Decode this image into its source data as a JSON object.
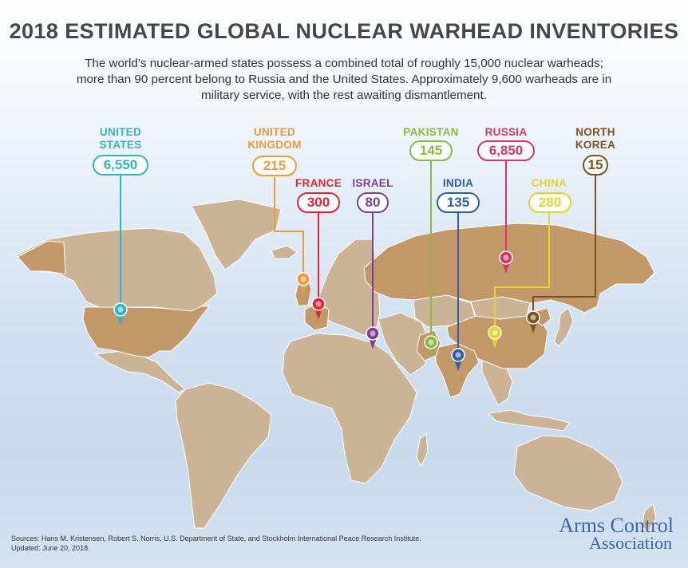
{
  "title": "2018 ESTIMATED GLOBAL NUCLEAR WARHEAD INVENTORIES",
  "subtitle": "The world’s nuclear-armed states possess a combined total of roughly 15,000 nuclear warheads; more than 90 percent belong to Russia and the United States. Approximately 9,600 warheads are in military service, with the rest awaiting dismantlement.",
  "countries": [
    {
      "id": "us",
      "name_lines": [
        "UNITED",
        "STATES"
      ],
      "value": "6,550",
      "color": "#2fb3c9"
    },
    {
      "id": "uk",
      "name_lines": [
        "UNITED",
        "KINGDOM"
      ],
      "value": "215",
      "color": "#ec9a3a"
    },
    {
      "id": "france",
      "name_lines": [
        "FRANCE"
      ],
      "value": "300",
      "color": "#e32436"
    },
    {
      "id": "israel",
      "name_lines": [
        "ISRAEL"
      ],
      "value": "80",
      "color": "#7b3f98"
    },
    {
      "id": "pakistan",
      "name_lines": [
        "PAKISTAN"
      ],
      "value": "145",
      "color": "#8bb93f"
    },
    {
      "id": "india",
      "name_lines": [
        "INDIA"
      ],
      "value": "135",
      "color": "#2e5fa5"
    },
    {
      "id": "russia",
      "name_lines": [
        "RUSSIA"
      ],
      "value": "6,850",
      "color": "#d63663"
    },
    {
      "id": "china",
      "name_lines": [
        "CHINA"
      ],
      "value": "280",
      "color": "#e4d22e"
    },
    {
      "id": "north_korea",
      "name_lines": [
        "NORTH",
        "KOREA"
      ],
      "value": "15",
      "color": "#7a5222"
    }
  ],
  "sources": {
    "line1": "Sources: Hans M. Kristensen, Robert S. Norris, U.S. Department of State, and Stockholm International Peace Research Institute.",
    "line2": "Updated: June 20, 2018."
  },
  "logo": {
    "line1": "Arms Control",
    "line2": "Association"
  }
}
